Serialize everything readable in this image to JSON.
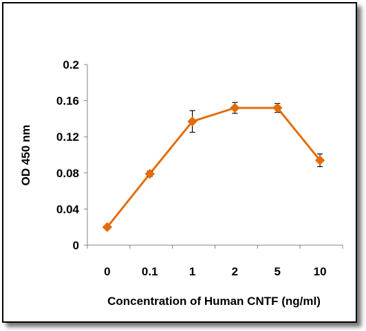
{
  "chart_data": {
    "type": "line",
    "categories": [
      "0",
      "0.1",
      "1",
      "2",
      "5",
      "10"
    ],
    "series": [
      {
        "values": [
          0.02,
          0.079,
          0.137,
          0.152,
          0.152,
          0.094
        ],
        "errors": [
          0.0,
          0.003,
          0.012,
          0.006,
          0.005,
          0.007
        ],
        "color": "#e36c0a"
      }
    ],
    "xlabel": "Concentration of Human CNTF (ng/ml)",
    "ylabel": "OD 450 nm",
    "ylim": [
      0,
      0.2
    ],
    "yticks": [
      "0",
      "0.04",
      "0.08",
      "0.12",
      "0.16",
      "0.2"
    ],
    "grid": false,
    "marker": "diamond"
  }
}
